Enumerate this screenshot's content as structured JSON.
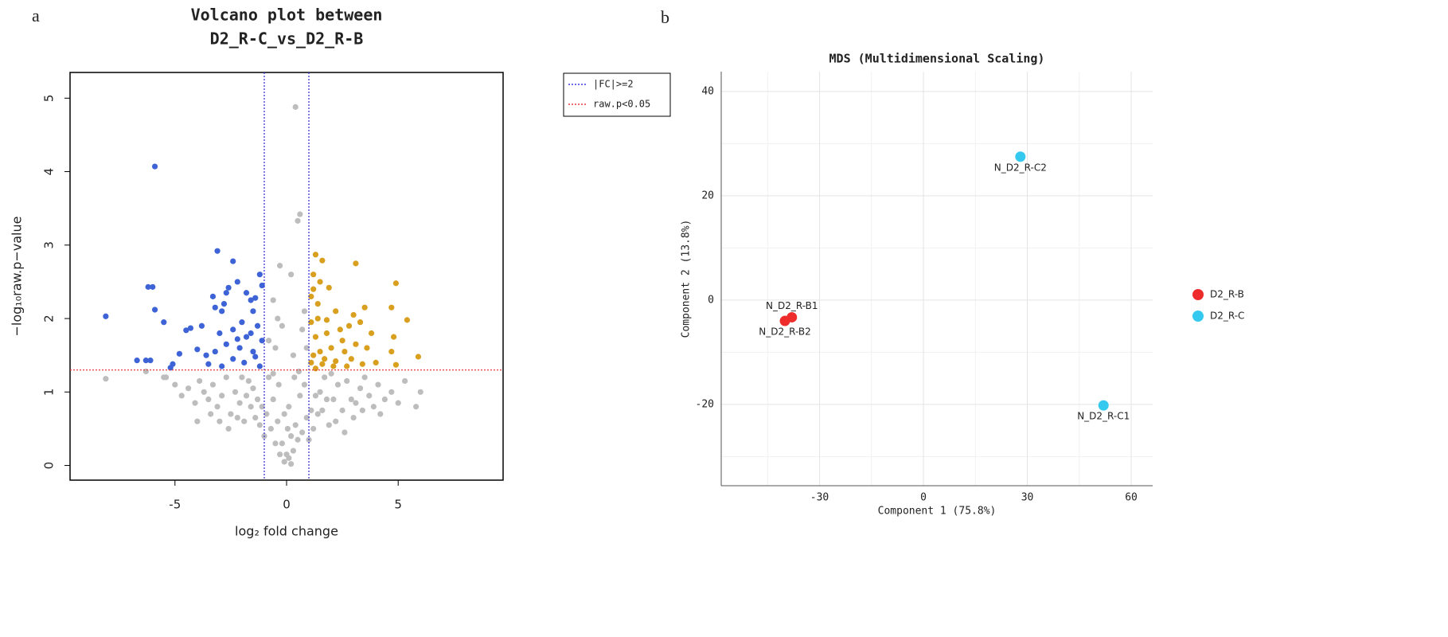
{
  "chart_data": [
    {
      "type": "scatter",
      "panel": "a",
      "title": [
        "Volcano plot between",
        "D2_R-C_vs_D2_R-B"
      ],
      "x_label": "log₂ fold change",
      "y_label": "−log₁₀raw.p−value",
      "xlim": [
        -9.7,
        9.7
      ],
      "ylim": [
        -0.2,
        5.35
      ],
      "xticks": [
        -5,
        0,
        5
      ],
      "yticks": [
        0,
        1,
        2,
        3,
        4,
        5
      ],
      "grid": false,
      "frame": true,
      "fc_lines": [
        -1,
        1
      ],
      "p_line": 1.3,
      "legend": [
        {
          "label": "|FC|>=2",
          "color": "#3a3ad8"
        },
        {
          "label": "raw.p<0.05",
          "color": "#e83a3a"
        }
      ],
      "series": [
        {
          "color": "#bdbdbd",
          "x": [
            -0.1,
            0.1,
            0.2,
            -0.3,
            0.3,
            -0.5,
            0.5,
            -0.7,
            0.7,
            -0.9,
            0.9,
            -1.1,
            1.1,
            -1.3,
            1.3,
            -1.5,
            1.5,
            -1.7,
            1.7,
            -1.9,
            1.9,
            -2.1,
            2.1,
            -2.3,
            2.3,
            -2.5,
            2.5,
            -2.7,
            2.7,
            -2.9,
            2.9,
            -3.1,
            3.1,
            -3.3,
            3.3,
            -3.5,
            3.5,
            -3.7,
            3.7,
            -3.9,
            3.9,
            -4.1,
            4.1,
            -4.4,
            4.4,
            -4.7,
            4.7,
            -5.0,
            5.0,
            -5.5,
            5.3,
            6.0,
            5.8,
            -0.4,
            0.4,
            -0.6,
            0.6,
            -0.8,
            0.8,
            -1.0,
            1.0,
            -1.2,
            1.2,
            -1.4,
            1.4,
            -1.6,
            1.6,
            -1.8,
            1.8,
            -2.0,
            2.0,
            -2.2,
            2.2,
            -0.2,
            0.2,
            -0.1,
            0.1,
            0,
            0.05,
            -0.35,
            0.35,
            -0.6,
            0.55,
            -2.6,
            2.6,
            -3.0,
            3.0,
            -3.4,
            3.4,
            4.2,
            -4.0,
            -0.3,
            0.2,
            0.4,
            0.6,
            0.5,
            -0.6,
            -0.4,
            0.8,
            -0.2,
            0.7,
            -0.5,
            0.3,
            -0.8,
            0.9,
            -8.1,
            -6.3,
            -5.4
          ],
          "values": [
            0.05,
            0.1,
            0.02,
            0.15,
            0.2,
            0.3,
            0.35,
            0.5,
            0.45,
            0.7,
            0.65,
            0.8,
            0.75,
            0.9,
            0.95,
            1.05,
            1.0,
            1.15,
            1.2,
            0.6,
            0.55,
            0.85,
            0.9,
            1.0,
            1.1,
            0.7,
            0.75,
            1.2,
            1.15,
            0.95,
            0.9,
            0.8,
            0.85,
            1.1,
            1.05,
            0.9,
            1.2,
            1.0,
            0.95,
            1.15,
            0.8,
            0.85,
            1.1,
            1.05,
            0.9,
            0.95,
            1.0,
            1.1,
            0.85,
            1.2,
            1.15,
            1.0,
            0.8,
            0.6,
            0.55,
            0.9,
            0.95,
            1.2,
            1.1,
            0.4,
            0.35,
            0.55,
            0.5,
            0.65,
            0.7,
            0.8,
            0.75,
            0.95,
            0.9,
            1.2,
            1.25,
            0.65,
            0.6,
            0.3,
            0.4,
            0.7,
            0.8,
            0.15,
            0.5,
            1.1,
            1.2,
            1.25,
            1.28,
            0.5,
            0.45,
            0.6,
            0.65,
            0.7,
            0.75,
            0.7,
            0.6,
            2.72,
            2.6,
            4.88,
            3.42,
            3.33,
            2.25,
            2.0,
            2.1,
            1.9,
            1.85,
            1.6,
            1.5,
            1.7,
            1.6,
            1.18,
            1.28,
            1.2
          ]
        },
        {
          "color": "#3d63d6",
          "x": [
            -5.9,
            -3.1,
            -2.4,
            -6.2,
            -6.0,
            -5.9,
            -8.1,
            -5.5,
            -6.7,
            -6.3,
            -6.1,
            -5.2,
            -5.1,
            -4.5,
            -4.3,
            -4.0,
            -3.8,
            -4.8,
            -3.3,
            -3.2,
            -2.9,
            -2.8,
            -2.7,
            -2.6,
            -2.2,
            -1.8,
            -1.6,
            -1.4,
            -1.2,
            -1.1,
            -1.5,
            -2.0,
            -2.4,
            -3.0,
            -2.7,
            -3.2,
            -3.6,
            -2.1,
            -1.8,
            -1.3,
            -1.1,
            -1.5,
            -2.4,
            -1.9,
            -1.2,
            -2.9,
            -3.5,
            -1.6,
            -2.2,
            -1.4
          ],
          "values": [
            4.07,
            2.92,
            2.78,
            2.43,
            2.43,
            2.12,
            2.03,
            1.95,
            1.43,
            1.43,
            1.43,
            1.33,
            1.38,
            1.84,
            1.87,
            1.58,
            1.9,
            1.52,
            2.3,
            2.15,
            2.1,
            2.2,
            2.35,
            2.42,
            2.5,
            2.35,
            2.25,
            2.28,
            2.6,
            2.45,
            2.1,
            1.95,
            1.85,
            1.8,
            1.65,
            1.55,
            1.5,
            1.6,
            1.75,
            1.9,
            1.7,
            1.55,
            1.45,
            1.4,
            1.35,
            1.35,
            1.38,
            1.8,
            1.72,
            1.48
          ]
        },
        {
          "color": "#d9a020",
          "x": [
            1.3,
            1.6,
            3.1,
            1.2,
            1.5,
            1.9,
            4.9,
            4.7,
            5.4,
            4.8,
            5.9,
            4.7,
            4.9,
            1.1,
            1.4,
            2.2,
            3.5,
            3.3,
            2.8,
            2.4,
            1.8,
            1.3,
            1.1,
            3.8,
            3.6,
            3.1,
            2.6,
            2.0,
            1.5,
            1.2,
            1.1,
            1.6,
            2.2,
            2.9,
            3.4,
            4.0,
            1.8,
            2.5,
            1.4,
            2.1,
            1.3,
            1.7,
            2.7,
            3.0,
            1.2
          ],
          "values": [
            2.87,
            2.79,
            2.75,
            2.6,
            2.5,
            2.42,
            2.48,
            2.15,
            1.98,
            1.75,
            1.48,
            1.55,
            1.37,
            2.3,
            2.2,
            2.1,
            2.15,
            1.95,
            1.9,
            1.85,
            1.8,
            1.75,
            1.95,
            1.8,
            1.6,
            1.65,
            1.55,
            1.6,
            1.55,
            1.5,
            1.4,
            1.38,
            1.42,
            1.45,
            1.38,
            1.4,
            1.98,
            1.7,
            2.0,
            1.35,
            1.32,
            1.45,
            1.35,
            2.05,
            2.4
          ]
        }
      ]
    },
    {
      "type": "scatter",
      "panel": "b",
      "title": [
        "MDS (Multidimensional Scaling)"
      ],
      "x_label": "Component 1 (75.8%)",
      "y_label": "Component 2 (13.8%)",
      "xlim": [
        -58.4,
        66.2
      ],
      "ylim": [
        -35.6,
        43.8
      ],
      "xticks": [
        -30,
        0,
        30,
        60
      ],
      "yticks": [
        -20,
        0,
        20,
        40
      ],
      "grid": true,
      "frame": false,
      "legend_position": "right",
      "series": [
        {
          "name": "D2_R-B",
          "color": "#ee2c2c",
          "x": [
            -38,
            -40
          ],
          "values": [
            -3.3,
            -4.0
          ],
          "point_labels": [
            "N_D2_R-B1",
            "N_D2_R-B2"
          ]
        },
        {
          "name": "D2_R-C",
          "color": "#35c9f0",
          "x": [
            28,
            52
          ],
          "values": [
            27.5,
            -20.2
          ],
          "point_labels": [
            "N_D2_R-C2",
            "N_D2_R-C1"
          ]
        }
      ]
    }
  ]
}
